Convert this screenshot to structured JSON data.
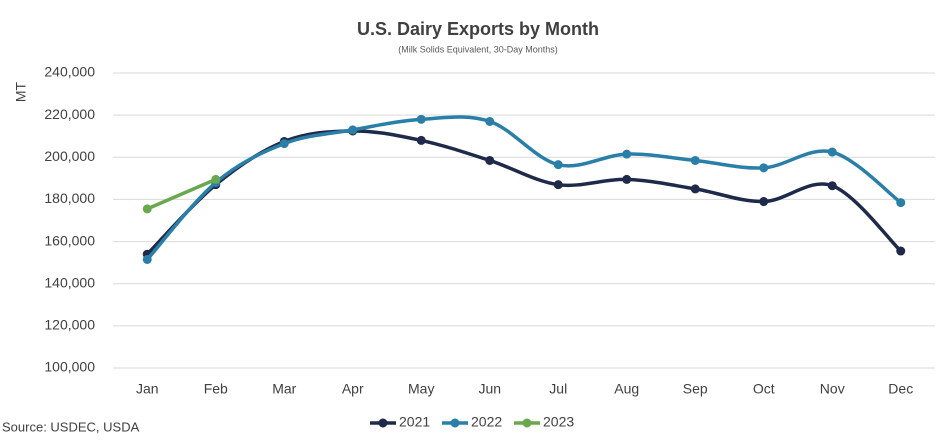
{
  "chart_data": {
    "type": "line",
    "title": "U.S. Dairy Exports by Month",
    "subtitle": "(Milk Solids Equivalent, 30-Day Months)",
    "y_label": "MT",
    "source": "Source: USDEC, USDA",
    "categories": [
      "Jan",
      "Feb",
      "Mar",
      "Apr",
      "May",
      "Jun",
      "Jul",
      "Aug",
      "Sep",
      "Oct",
      "Nov",
      "Dec"
    ],
    "series": [
      {
        "name": "2021",
        "color": "#1f2a4a",
        "values": [
          154000,
          187000,
          207500,
          212500,
          208000,
          198500,
          187000,
          189500,
          185000,
          179000,
          186500,
          155500
        ]
      },
      {
        "name": "2022",
        "color": "#2a7fa8",
        "values": [
          151500,
          188000,
          206500,
          213000,
          218000,
          217000,
          196500,
          201500,
          198500,
          195000,
          202500,
          178500
        ]
      },
      {
        "name": "2023",
        "color": "#6aa84f",
        "values": [
          175500,
          189500,
          null,
          null,
          null,
          null,
          null,
          null,
          null,
          null,
          null,
          null
        ]
      }
    ],
    "ylim": [
      100000,
      240000
    ],
    "yticks": [
      {
        "value": 100000,
        "label": "100,000"
      },
      {
        "value": 120000,
        "label": "120,000"
      },
      {
        "value": 140000,
        "label": "140,000"
      },
      {
        "value": 160000,
        "label": "160,000"
      },
      {
        "value": 180000,
        "label": "180,000"
      },
      {
        "value": 200000,
        "label": "200,000"
      },
      {
        "value": 220000,
        "label": "220,000"
      },
      {
        "value": 240000,
        "label": "240,000"
      }
    ],
    "grid": true,
    "legend": "bottom"
  }
}
